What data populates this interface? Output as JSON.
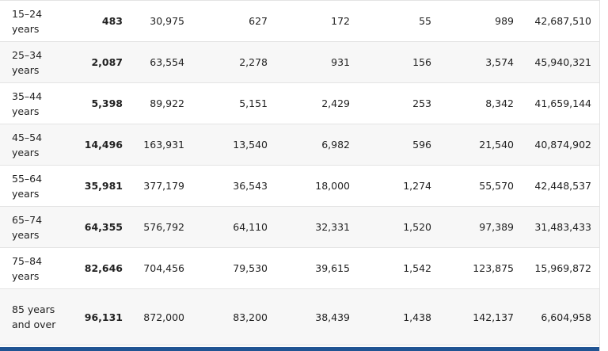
{
  "table": {
    "rows": [
      {
        "age": "15–24 years",
        "c1": "483",
        "c2": "30,975",
        "c3": "627",
        "c4": "172",
        "c5": "55",
        "c6": "989",
        "c7": "42,687,510"
      },
      {
        "age": "25–34 years",
        "c1": "2,087",
        "c2": "63,554",
        "c3": "2,278",
        "c4": "931",
        "c5": "156",
        "c6": "3,574",
        "c7": "45,940,321"
      },
      {
        "age": "35–44 years",
        "c1": "5,398",
        "c2": "89,922",
        "c3": "5,151",
        "c4": "2,429",
        "c5": "253",
        "c6": "8,342",
        "c7": "41,659,144"
      },
      {
        "age": "45–54 years",
        "c1": "14,496",
        "c2": "163,931",
        "c3": "13,540",
        "c4": "6,982",
        "c5": "596",
        "c6": "21,540",
        "c7": "40,874,902"
      },
      {
        "age": "55–64 years",
        "c1": "35,981",
        "c2": "377,179",
        "c3": "36,543",
        "c4": "18,000",
        "c5": "1,274",
        "c6": "55,570",
        "c7": "42,448,537"
      },
      {
        "age": "65–74 years",
        "c1": "64,355",
        "c2": "576,792",
        "c3": "64,110",
        "c4": "32,331",
        "c5": "1,520",
        "c6": "97,389",
        "c7": "31,483,433"
      },
      {
        "age": "75–84 years",
        "c1": "82,646",
        "c2": "704,456",
        "c3": "79,530",
        "c4": "39,615",
        "c5": "1,542",
        "c6": "123,875",
        "c7": "15,969,872"
      },
      {
        "age": "85 years and over",
        "c1": "96,131",
        "c2": "872,000",
        "c3": "83,200",
        "c4": "38,439",
        "c5": "1,438",
        "c6": "142,137",
        "c7": "6,604,958"
      }
    ]
  }
}
